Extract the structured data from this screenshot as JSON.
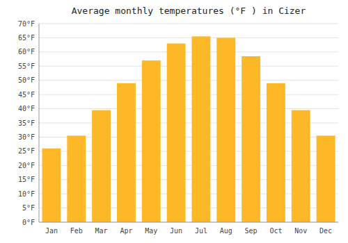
{
  "chart_data": {
    "type": "bar",
    "title": "Average monthly temperatures (°F ) in Cizer",
    "categories": [
      "Jan",
      "Feb",
      "Mar",
      "Apr",
      "May",
      "Jun",
      "Jul",
      "Aug",
      "Sep",
      "Oct",
      "Nov",
      "Dec"
    ],
    "values": [
      26,
      30.5,
      39.5,
      49,
      57,
      63,
      65.5,
      65,
      58.5,
      49,
      39.5,
      30.5
    ],
    "color": "#FDB827",
    "ylim": [
      0,
      70
    ],
    "yticks": [
      {
        "value": 0,
        "label": "0°F"
      },
      {
        "value": 5,
        "label": "5°F"
      },
      {
        "value": 10,
        "label": "10°F"
      },
      {
        "value": 15,
        "label": "15°F"
      },
      {
        "value": 20,
        "label": "20°F"
      },
      {
        "value": 25,
        "label": "25°F"
      },
      {
        "value": 30,
        "label": "30°F"
      },
      {
        "value": 35,
        "label": "35°F"
      },
      {
        "value": 40,
        "label": "40°F"
      },
      {
        "value": 45,
        "label": "45°F"
      },
      {
        "value": 50,
        "label": "50°F"
      },
      {
        "value": 55,
        "label": "55°F"
      },
      {
        "value": 60,
        "label": "60°F"
      },
      {
        "value": 65,
        "label": "65°F"
      },
      {
        "value": 70,
        "label": "70°F"
      }
    ],
    "grid": true
  }
}
